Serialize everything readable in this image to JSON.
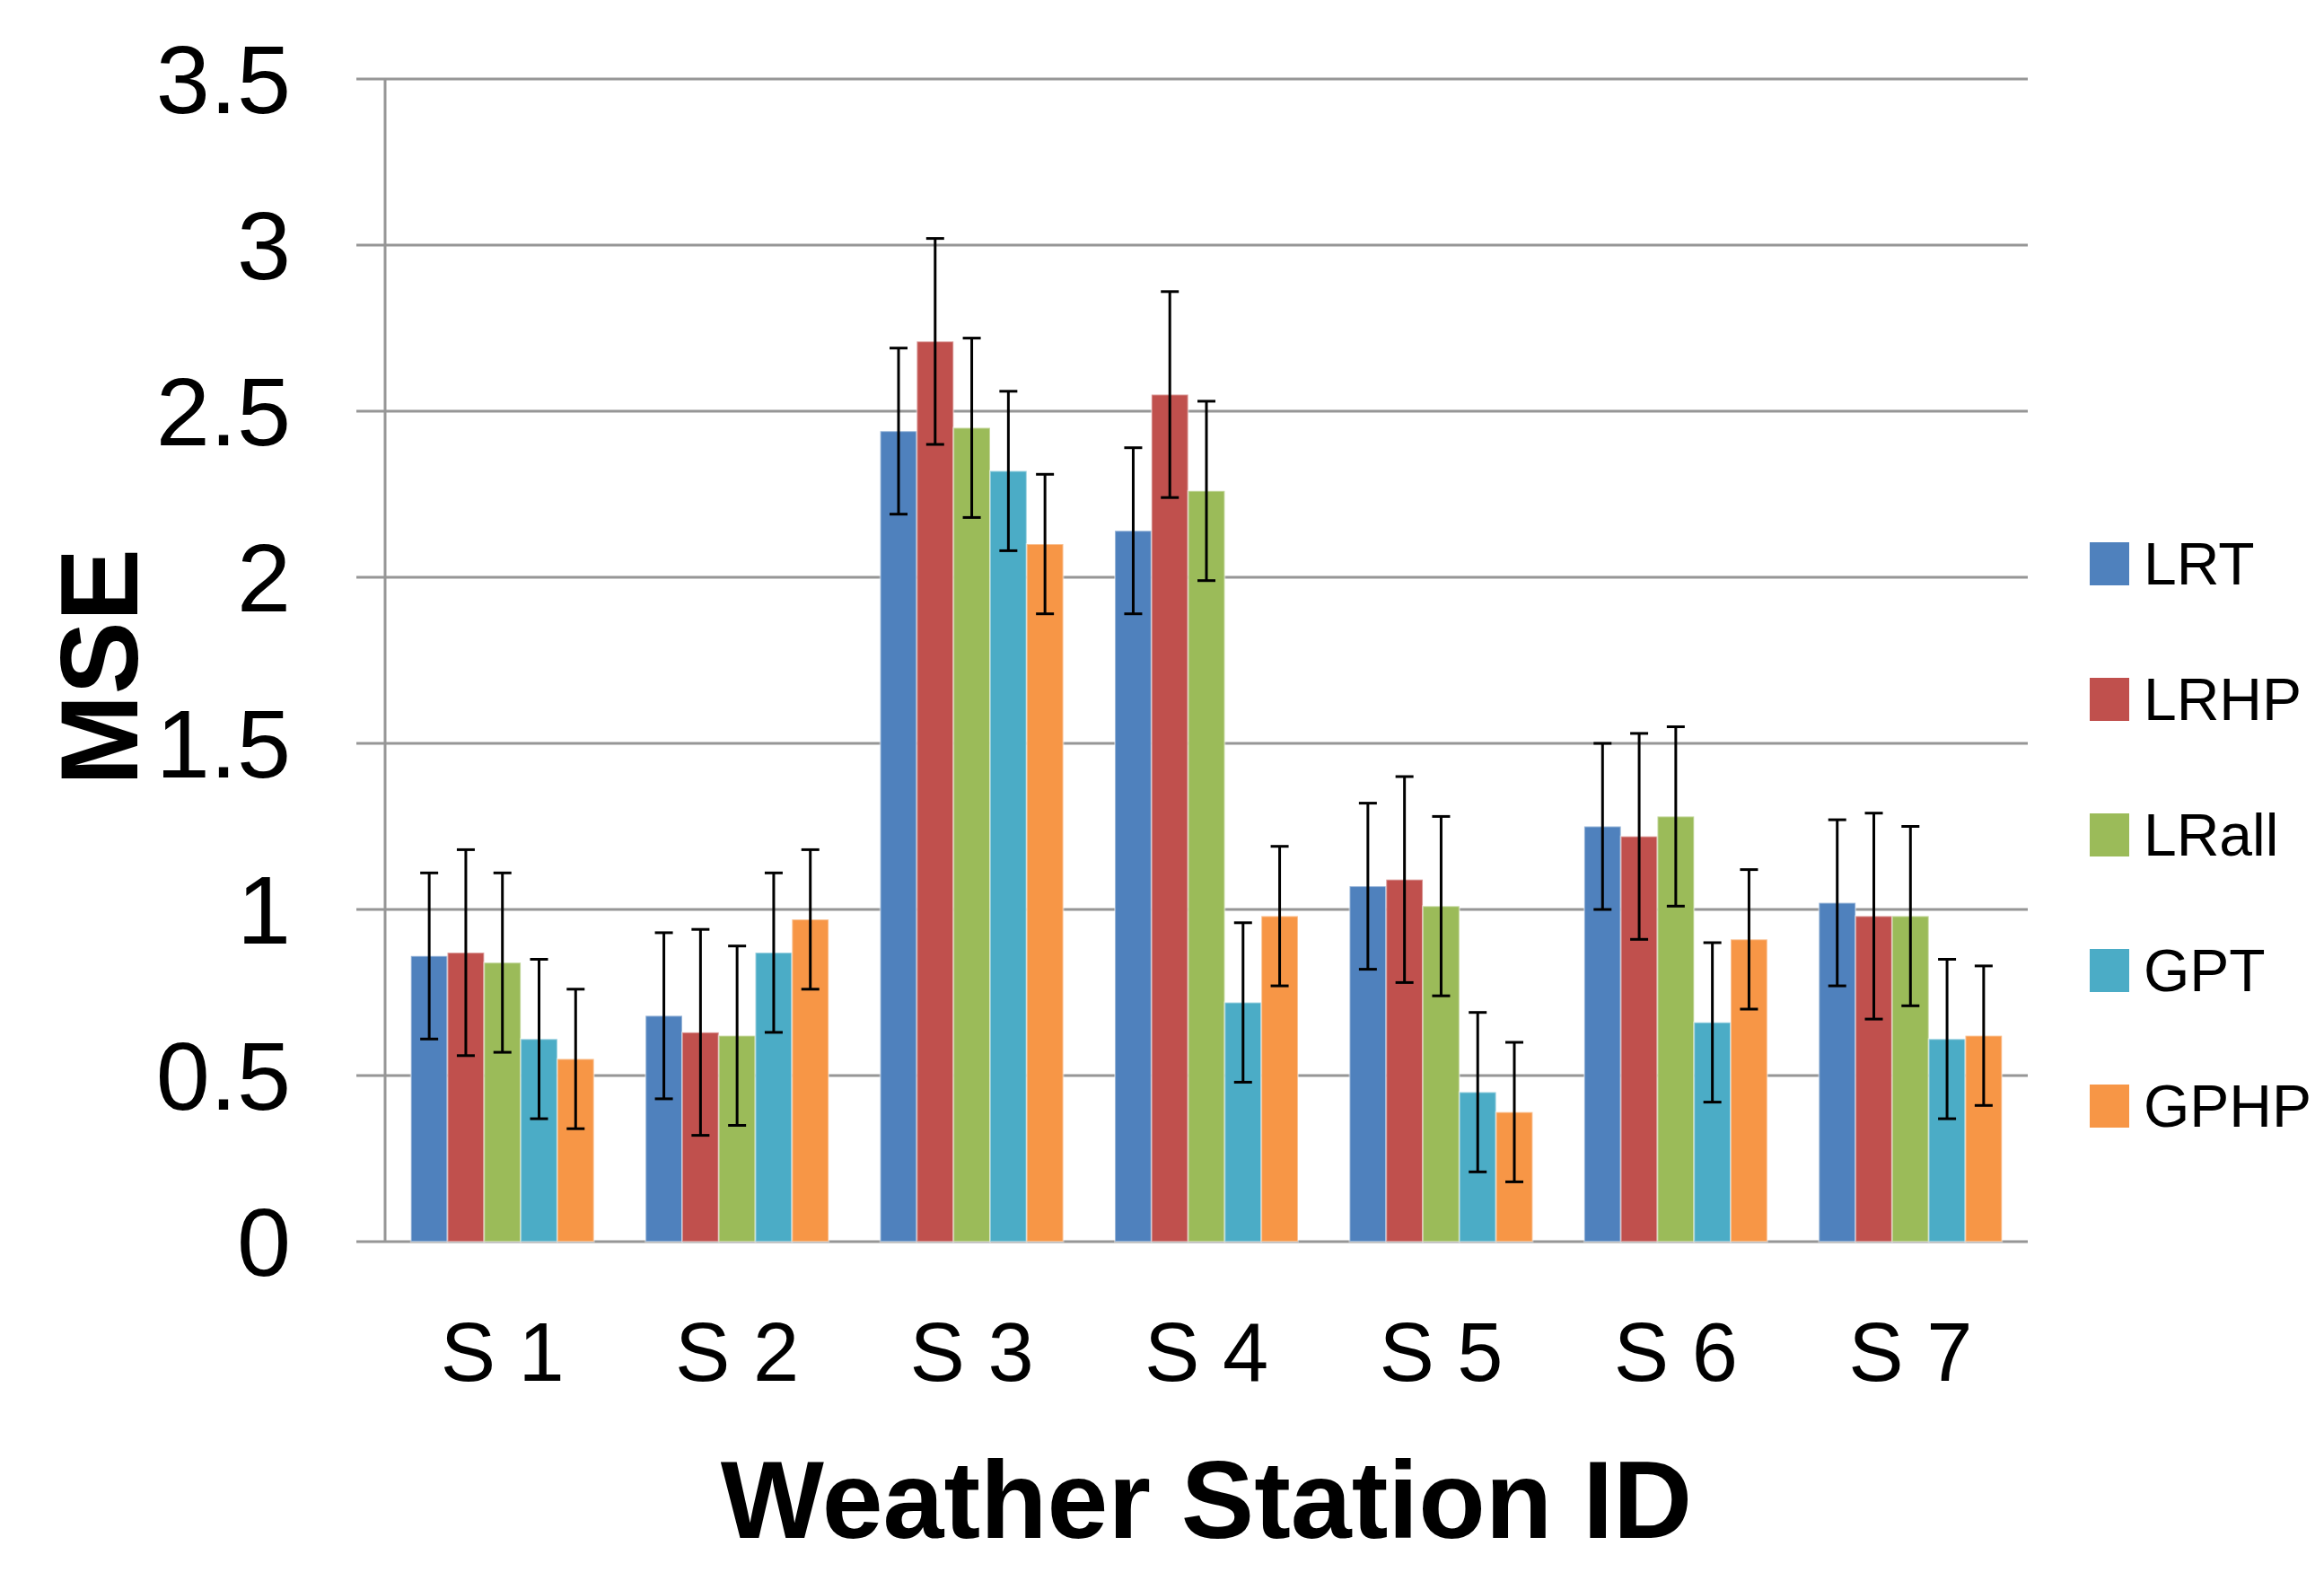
{
  "chart_data": {
    "type": "bar",
    "xlabel": "Weather Station ID",
    "ylabel": "MSE",
    "categories": [
      "S 1",
      "S 2",
      "S 3",
      "S 4",
      "S 5",
      "S 6",
      "S 7"
    ],
    "series": [
      {
        "name": "LRT",
        "color": "#4f81bd",
        "values": [
          0.86,
          0.68,
          2.44,
          2.14,
          1.07,
          1.25,
          1.02
        ],
        "errors": [
          0.25,
          0.25,
          0.25,
          0.25,
          0.25,
          0.25,
          0.25
        ]
      },
      {
        "name": "LRHP",
        "color": "#c0504d",
        "values": [
          0.87,
          0.63,
          2.71,
          2.55,
          1.09,
          1.22,
          0.98
        ],
        "errors": [
          0.31,
          0.31,
          0.31,
          0.31,
          0.31,
          0.31,
          0.31
        ]
      },
      {
        "name": "LRall",
        "color": "#9bbb59",
        "values": [
          0.84,
          0.62,
          2.45,
          2.26,
          1.01,
          1.28,
          0.98
        ],
        "errors": [
          0.27,
          0.27,
          0.27,
          0.27,
          0.27,
          0.27,
          0.27
        ]
      },
      {
        "name": "GPT",
        "color": "#4bacc6",
        "values": [
          0.61,
          0.87,
          2.32,
          0.72,
          0.45,
          0.66,
          0.61
        ],
        "errors": [
          0.24,
          0.24,
          0.24,
          0.24,
          0.24,
          0.24,
          0.24
        ]
      },
      {
        "name": "GPHP",
        "color": "#f79646",
        "values": [
          0.55,
          0.97,
          2.1,
          0.98,
          0.39,
          0.91,
          0.62
        ],
        "errors": [
          0.21,
          0.21,
          0.21,
          0.21,
          0.21,
          0.21,
          0.21
        ]
      }
    ],
    "ylim": [
      0,
      3.5
    ],
    "yticks": [
      0,
      0.5,
      1,
      1.5,
      2,
      2.5,
      3,
      3.5
    ],
    "grid": "y",
    "legend": "right"
  }
}
